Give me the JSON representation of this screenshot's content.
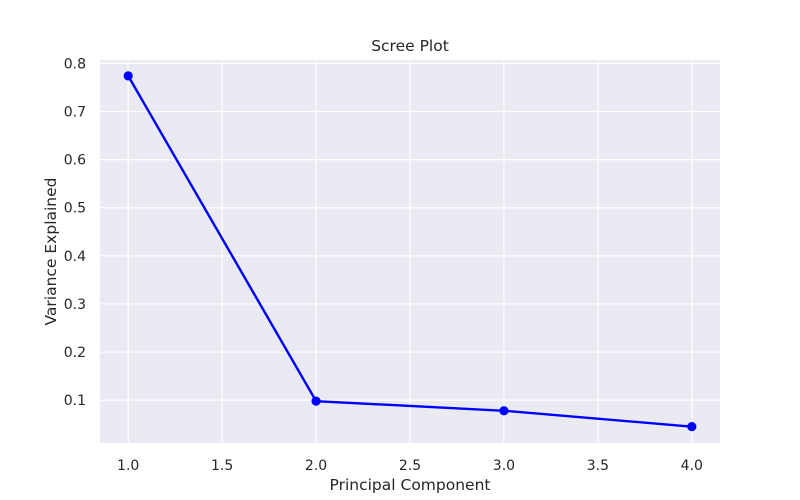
{
  "chart_data": {
    "type": "line",
    "title": "Scree Plot",
    "xlabel": "Principal Component",
    "ylabel": "Variance Explained",
    "x": [
      1.0,
      2.0,
      3.0,
      4.0
    ],
    "series": [
      {
        "values": [
          0.774,
          0.098,
          0.078,
          0.045
        ],
        "color": "#0000ff",
        "marker": "circle"
      }
    ],
    "xlim": [
      0.85,
      4.15
    ],
    "ylim": [
      0.011,
      0.807
    ],
    "xticks": [
      1.0,
      1.5,
      2.0,
      2.5,
      3.0,
      3.5,
      4.0
    ],
    "xtick_labels": [
      "1.0",
      "1.5",
      "2.0",
      "2.5",
      "3.0",
      "3.5",
      "4.0"
    ],
    "yticks": [
      0.1,
      0.2,
      0.3,
      0.4,
      0.5,
      0.6,
      0.7,
      0.8
    ],
    "ytick_labels": [
      "0.1",
      "0.2",
      "0.3",
      "0.4",
      "0.5",
      "0.6",
      "0.7",
      "0.8"
    ],
    "grid": true,
    "background_color": "#eaeaf2"
  }
}
